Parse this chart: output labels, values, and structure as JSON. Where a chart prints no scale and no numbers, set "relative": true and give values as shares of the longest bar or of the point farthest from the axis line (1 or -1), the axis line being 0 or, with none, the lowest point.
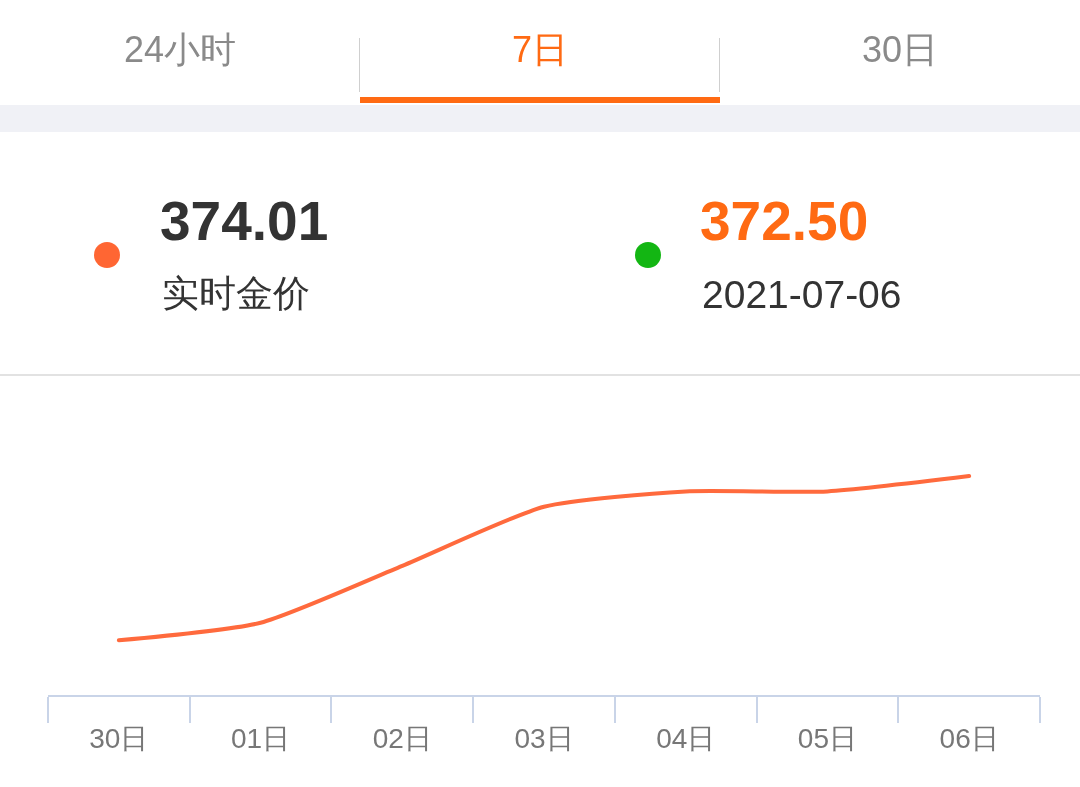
{
  "chart_data": {
    "type": "line",
    "annotations": [
      "24小时",
      "7日",
      "30日",
      "374.01",
      "实时金价",
      "372.50",
      "2021-07-06"
    ],
    "categories": [
      "30日",
      "01日",
      "02日",
      "03日",
      "04日",
      "05日",
      "06日"
    ],
    "values": [
      0.25,
      0.33,
      0.59,
      0.86,
      0.93,
      0.93,
      1
    ],
    "color": "#ff6a3d",
    "relative": true,
    "line_style": "solid"
  }
}
